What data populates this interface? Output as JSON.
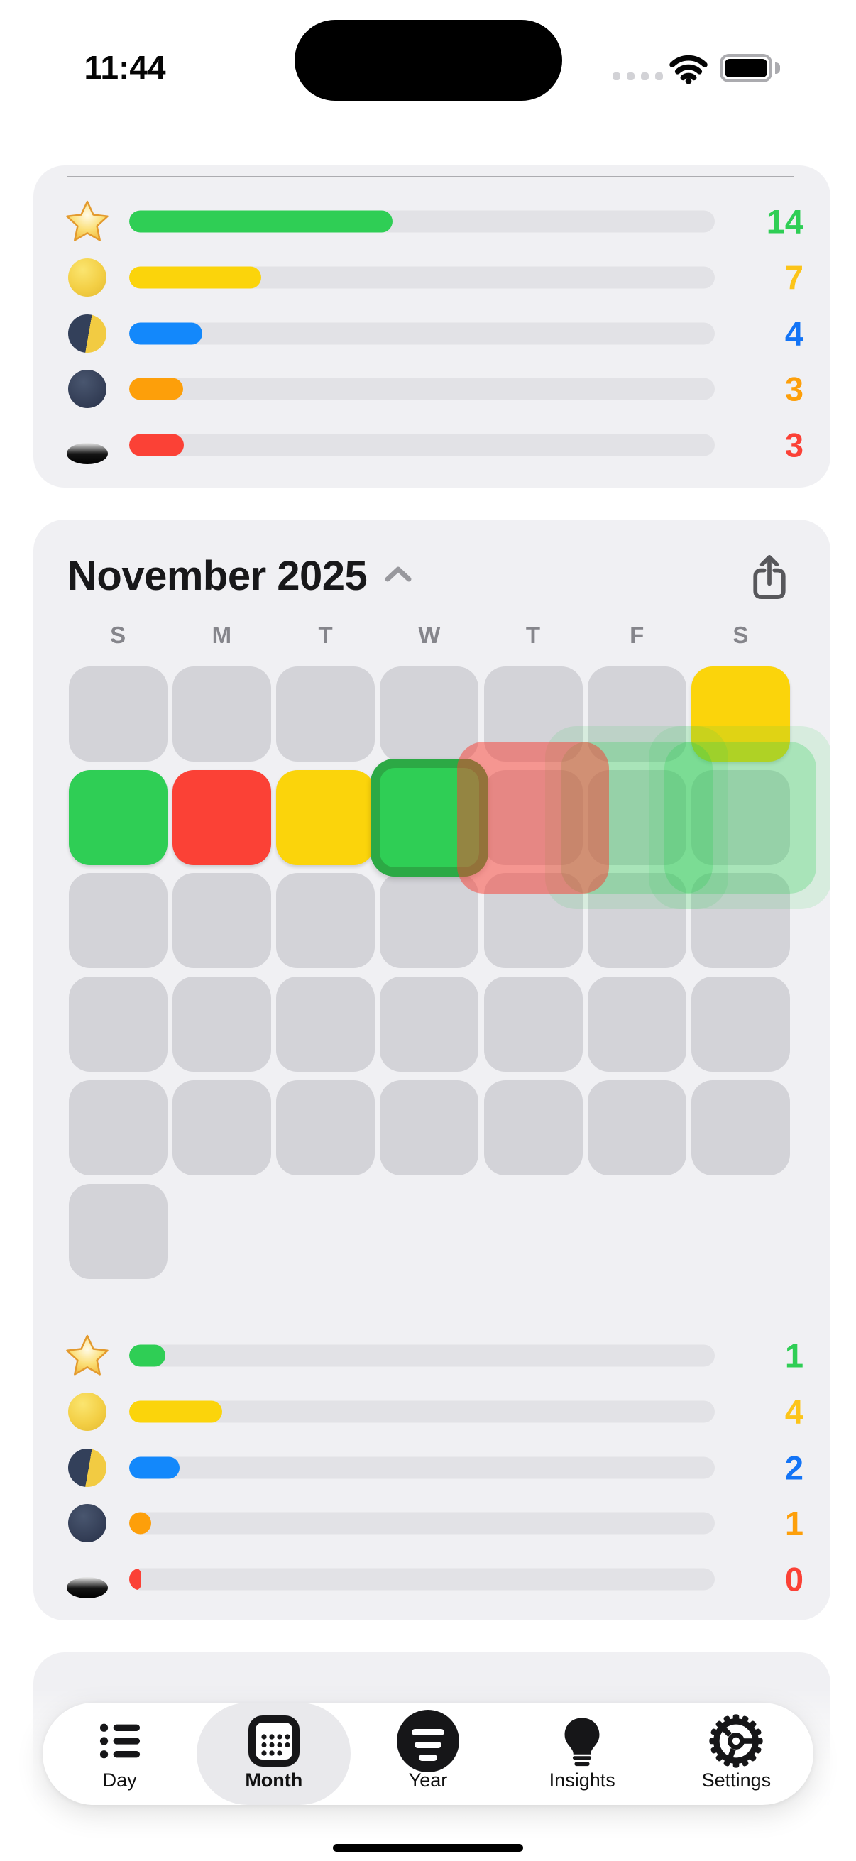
{
  "status_bar": {
    "time": "11:44",
    "cellular_dots": 4,
    "icons": [
      "cellular-dots",
      "wifi",
      "battery-full"
    ]
  },
  "stats_top": {
    "rows": [
      {
        "icon": "star-icon",
        "value": "14",
        "pct": 45.0,
        "bar_color": "#2FCE55",
        "value_color": "#2FCE55"
      },
      {
        "icon": "full-moon-icon",
        "value": "7",
        "pct": 22.5,
        "bar_color": "#FBD40B",
        "value_color": "#FCC419"
      },
      {
        "icon": "half-moon-icon",
        "value": "4",
        "pct": 12.5,
        "bar_color": "#1388FB",
        "value_color": "#1374F6"
      },
      {
        "icon": "new-moon-icon",
        "value": "3",
        "pct": 9.2,
        "bar_color": "#FD9F0A",
        "value_color": "#FD9F0A"
      },
      {
        "icon": "hole-icon",
        "value": "3",
        "pct": 9.3,
        "bar_color": "#FB4136",
        "value_color": "#FB4136"
      }
    ]
  },
  "calendar": {
    "title": "November 2025",
    "collapse_chevron": "chevron-up",
    "share_icon": "share",
    "day_headers": [
      "S",
      "M",
      "T",
      "W",
      "T",
      "F",
      "S"
    ],
    "weeks": [
      [
        "gray",
        "gray",
        "gray",
        "gray",
        "gray",
        "gray",
        "yellow"
      ],
      [
        "green",
        "red",
        "yellow",
        "green-active",
        "gray",
        "gray",
        "gray"
      ],
      [
        "gray",
        "gray",
        "gray",
        "gray",
        "gray",
        "gray",
        "gray"
      ],
      [
        "gray",
        "gray",
        "gray",
        "gray",
        "gray",
        "gray",
        "gray"
      ],
      [
        "gray",
        "gray",
        "gray",
        "gray",
        "gray",
        "gray",
        "gray"
      ],
      [
        "gray",
        null,
        null,
        null,
        null,
        null,
        null
      ]
    ],
    "cell_colors": {
      "gray": "#D3D3D8",
      "yellow": "#FBD40B",
      "green": "#2FCE55",
      "red": "#FB4136"
    },
    "animation_overlays": [
      {
        "kind": "large",
        "color": "green",
        "col": 5,
        "row": 1
      },
      {
        "kind": "large",
        "color": "green",
        "col": 6,
        "row": 1
      },
      {
        "kind": "medium",
        "color": "green",
        "col": 5,
        "row": 1
      },
      {
        "kind": "medium",
        "color": "green",
        "col": 6,
        "row": 1
      },
      {
        "kind": "medium",
        "color": "red",
        "col": 4,
        "row": 1
      }
    ]
  },
  "stats_bottom": {
    "rows": [
      {
        "icon": "star-icon",
        "value": "1",
        "pct": 6.2,
        "bar_color": "#2FCE55",
        "value_color": "#2FCE55"
      },
      {
        "icon": "full-moon-icon",
        "value": "4",
        "pct": 15.9,
        "bar_color": "#FBD40B",
        "value_color": "#FCC419"
      },
      {
        "icon": "half-moon-icon",
        "value": "2",
        "pct": 8.6,
        "bar_color": "#1388FB",
        "value_color": "#1374F6"
      },
      {
        "icon": "new-moon-icon",
        "value": "1",
        "pct": 3.7,
        "bar_color": "#FD9F0A",
        "value_color": "#FD9F0A"
      },
      {
        "icon": "hole-icon",
        "value": "0",
        "pct": 2.0,
        "bar_color": "#FB4136",
        "value_color": "#FB4136"
      }
    ]
  },
  "tab_bar": {
    "items": [
      {
        "label": "Day",
        "icon": "list-icon",
        "active": false
      },
      {
        "label": "Month",
        "icon": "calendar-icon",
        "active": true
      },
      {
        "label": "Year",
        "icon": "filter-circle-icon",
        "active": false
      },
      {
        "label": "Insights",
        "icon": "lightbulb-icon",
        "active": false
      },
      {
        "label": "Settings",
        "icon": "gear-icon",
        "active": false
      }
    ]
  }
}
